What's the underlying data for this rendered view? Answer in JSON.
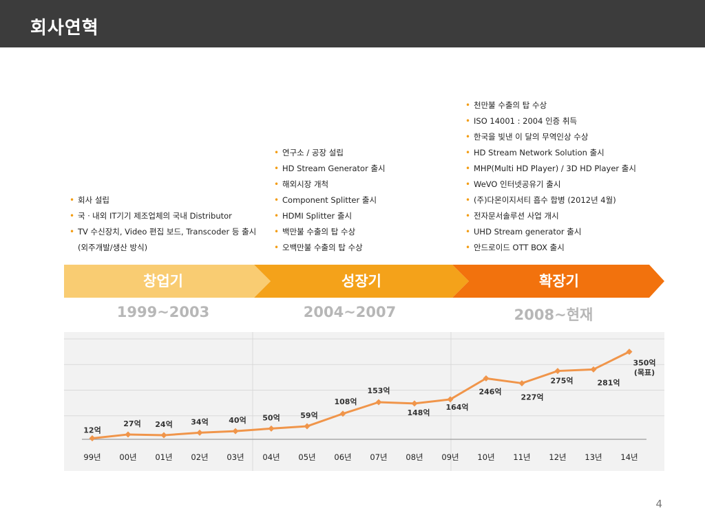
{
  "header": {
    "title": "회사연혁"
  },
  "milestones": [
    {
      "items": [
        "회사 설립",
        "국ㆍ내외 IT기기 제조업체의 국내 Distributor",
        "TV 수신장치, Video 편집 보드, Transcoder 등 출시 (외주개발/생산 방식)"
      ]
    },
    {
      "items": [
        "연구소 / 공장 설립",
        "HD Stream Generator 출시",
        "해외시장 개척",
        "Component Splitter 출시",
        "HDMI Splitter 출시",
        "백만불 수출의 탑 수상",
        "오백만불 수출의 탑 수상"
      ]
    },
    {
      "items": [
        "천만불 수출의 탑 수상",
        "ISO 14001 : 2004 인증 취득",
        "한국을 빛낸 이 달의 무역인상 수상",
        "HD Stream Network Solution 출시",
        "MHP(Multi HD Player) / 3D HD Player 출시",
        "WeVO 인터넷공유기 출시",
        "(주)다몬이지서티 흡수 합병 (2012년 4월)",
        "전자문서솔루션 사업 개시",
        "UHD Stream generator 출시",
        "안드로이드 OTT BOX 출시"
      ]
    }
  ],
  "phases": [
    {
      "label": "창업기",
      "period": "1999~2003",
      "color": "#f9cc72"
    },
    {
      "label": "성장기",
      "period": "2004~2007",
      "color": "#f4a21a"
    },
    {
      "label": "확장기",
      "period": "2008~현재",
      "color": "#f2720d"
    }
  ],
  "chart_data": {
    "type": "line",
    "categories": [
      "99년",
      "00년",
      "01년",
      "02년",
      "03년",
      "04년",
      "05년",
      "06년",
      "07년",
      "08년",
      "09년",
      "10년",
      "11년",
      "12년",
      "13년",
      "14년"
    ],
    "values": [
      12,
      27,
      24,
      34,
      40,
      50,
      59,
      108,
      153,
      148,
      164,
      246,
      227,
      275,
      281,
      350
    ],
    "data_labels": [
      "12억",
      "27억",
      "24억",
      "34억",
      "40억",
      "50억",
      "59억",
      "108억",
      "153억",
      "148억",
      "164억",
      "246억",
      "227억",
      "275억",
      "281억",
      "350억"
    ],
    "last_note": "(목표)",
    "ylim": [
      0,
      400
    ],
    "grid": true,
    "line_color": "#f0954a"
  },
  "page_number": "4"
}
